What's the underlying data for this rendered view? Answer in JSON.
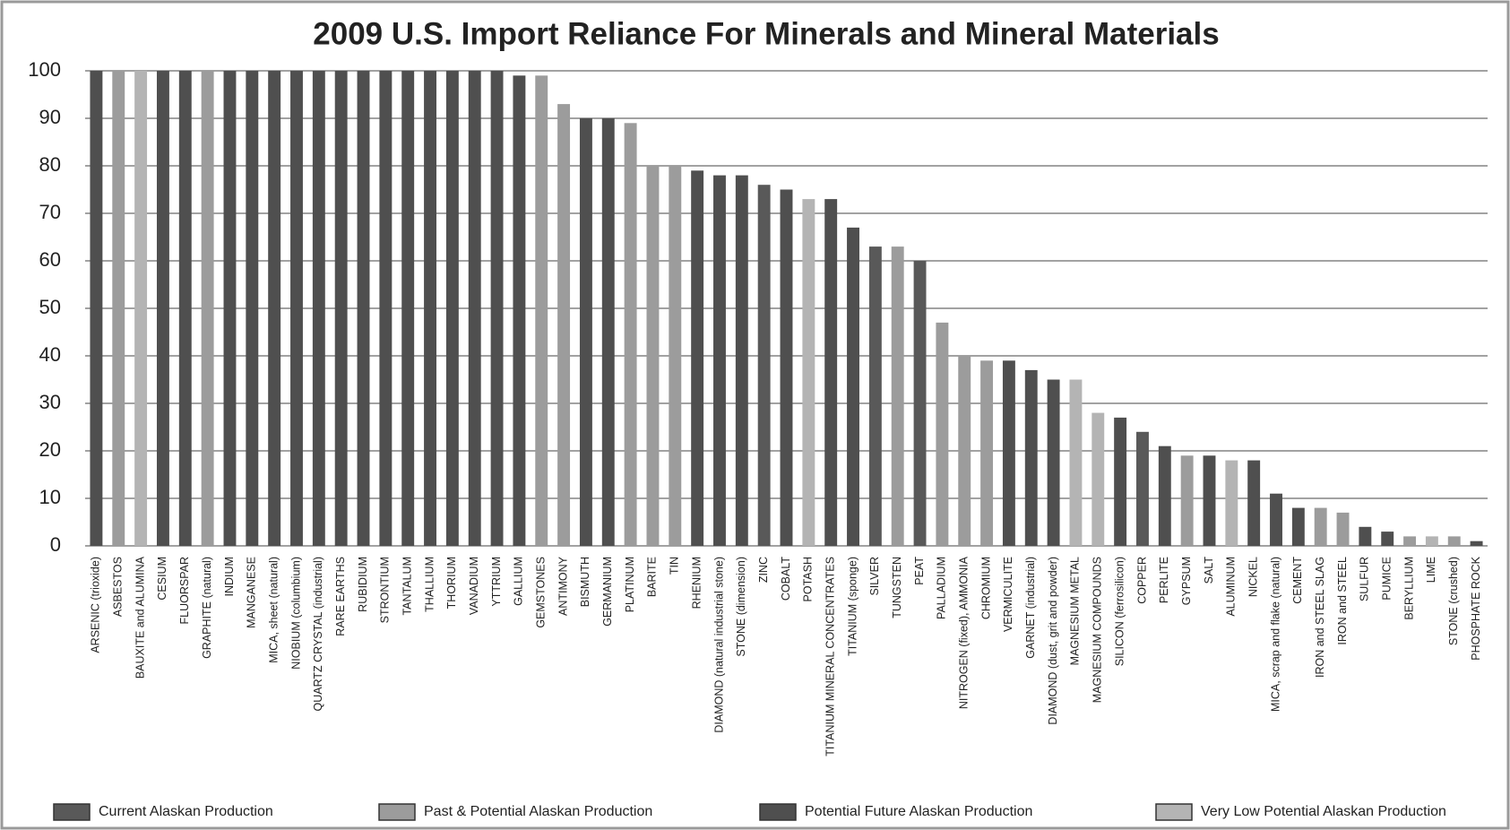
{
  "chart_data": {
    "type": "bar",
    "title": "2009 U.S. Import Reliance For Minerals and Mineral Materials",
    "categories": [
      "ARSENIC (trioxide)",
      "ASBESTOS",
      "BAUXITE and ALUMINA",
      "CESIUM",
      "FLUORSPAR",
      "GRAPHITE (natural)",
      "INDIUM",
      "MANGANESE",
      "MICA, sheet (natural)",
      "NIOBIUM (columbium)",
      "QUARTZ CRYSTAL (industrial)",
      "RARE EARTHS",
      "RUBIDIUM",
      "STRONTIUM",
      "TANTALUM",
      "THALLIUM",
      "THORIUM",
      "VANADIUM",
      "YTTRIUM",
      "GALLIUM",
      "GEMSTONES",
      "ANTIMONY",
      "BISMUTH",
      "GERMANIUM",
      "PLATINUM",
      "BARITE",
      "TIN",
      "RHENIUM",
      "DIAMOND (natural industrial stone)",
      "STONE (dimension)",
      "ZINC",
      "COBALT",
      "POTASH",
      "TITANIUM MINERAL CONCENTRATES",
      "TITANIUM (sponge)",
      "SILVER",
      "TUNGSTEN",
      "PEAT",
      "PALLADIUM",
      "NITROGEN (fixed), AMMONIA",
      "CHROMIUM",
      "VERMICULITE",
      "GARNET (industrial)",
      "DIAMOND (dust, grit and powder)",
      "MAGNESIUM METAL",
      "MAGNESIUM COMPOUNDS",
      "SILICON (ferrosilicon)",
      "COPPER",
      "PERLITE",
      "GYPSUM",
      "SALT",
      "ALUMINUM",
      "NICKEL",
      "MICA, scrap and flake (natural)",
      "CEMENT",
      "IRON and STEEL SLAG",
      "IRON and STEEL",
      "SULFUR",
      "PUMICE",
      "BERYLLIUM",
      "LIME",
      "STONE (crushed)",
      "PHOSPHATE ROCK"
    ],
    "series": [
      {
        "name": "Current Alaskan Production",
        "color": "#595959",
        "values": [
          null,
          null,
          null,
          null,
          null,
          null,
          null,
          null,
          null,
          null,
          null,
          null,
          null,
          null,
          null,
          null,
          null,
          null,
          null,
          null,
          null,
          null,
          null,
          null,
          null,
          null,
          null,
          null,
          null,
          null,
          76,
          null,
          null,
          null,
          null,
          63,
          null,
          60,
          null,
          null,
          null,
          null,
          null,
          null,
          null,
          null,
          null,
          24,
          null,
          null,
          null,
          null,
          null,
          null,
          null,
          null,
          null,
          null,
          null,
          null,
          null,
          null,
          null
        ]
      },
      {
        "name": "Past & Potential Alaskan Production",
        "color": "#9c9c9c",
        "values": [
          null,
          100,
          null,
          null,
          null,
          100,
          null,
          null,
          null,
          null,
          null,
          null,
          null,
          null,
          null,
          null,
          null,
          null,
          null,
          null,
          99,
          93,
          null,
          null,
          89,
          80,
          80,
          null,
          null,
          null,
          null,
          null,
          null,
          null,
          null,
          null,
          63,
          null,
          47,
          40,
          39,
          null,
          null,
          null,
          null,
          null,
          null,
          null,
          null,
          19,
          null,
          null,
          null,
          null,
          null,
          8,
          7,
          null,
          null,
          2,
          null,
          2,
          null
        ]
      },
      {
        "name": "Potential Future Alaskan Production",
        "color": "#4f4f4f",
        "values": [
          100,
          null,
          null,
          100,
          100,
          null,
          100,
          100,
          100,
          100,
          100,
          100,
          100,
          100,
          100,
          100,
          100,
          100,
          100,
          99,
          null,
          null,
          90,
          90,
          null,
          null,
          null,
          79,
          78,
          78,
          null,
          75,
          null,
          73,
          67,
          null,
          null,
          null,
          null,
          null,
          null,
          39,
          37,
          35,
          null,
          null,
          27,
          null,
          21,
          null,
          19,
          null,
          18,
          11,
          8,
          null,
          null,
          4,
          3,
          null,
          null,
          null,
          1
        ]
      },
      {
        "name": "Very Low Potential Alaskan Production",
        "color": "#b4b4b4",
        "values": [
          null,
          null,
          100,
          null,
          null,
          null,
          null,
          null,
          null,
          null,
          null,
          null,
          null,
          null,
          null,
          null,
          null,
          null,
          null,
          null,
          null,
          null,
          null,
          null,
          null,
          null,
          null,
          null,
          null,
          null,
          null,
          null,
          73,
          null,
          null,
          null,
          null,
          null,
          null,
          null,
          null,
          null,
          null,
          null,
          35,
          28,
          null,
          null,
          null,
          null,
          null,
          18,
          null,
          null,
          null,
          null,
          null,
          null,
          null,
          null,
          2,
          null,
          null
        ]
      }
    ],
    "ylim": [
      0,
      100
    ],
    "yticks": [
      0,
      10,
      20,
      30,
      40,
      50,
      60,
      70,
      80,
      90,
      100
    ],
    "grid": true,
    "legend": "bottom"
  }
}
